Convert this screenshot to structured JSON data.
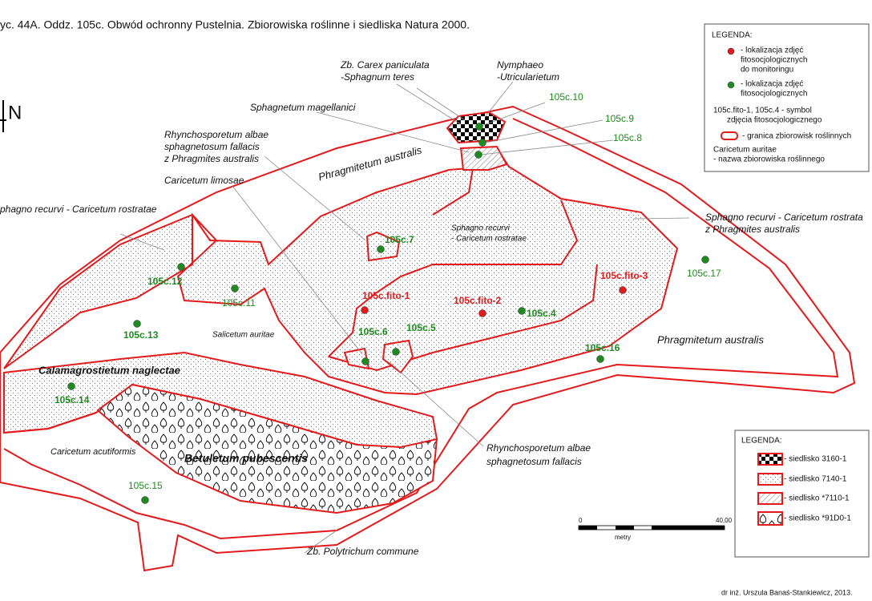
{
  "title": "yc. 44A. Oddz. 105c. Obwód ochronny Pustelnia. Zbiorowiska roślinne i siedliska Natura 2000.",
  "north": "N",
  "communities": [
    {
      "lines": [
        "Zb. Carex paniculata",
        "-Sphagnum teres"
      ]
    },
    {
      "lines": [
        "Nymphaeo",
        "-Utricularietum"
      ]
    },
    {
      "lines": [
        "Sphagnetum magellanici"
      ]
    },
    {
      "lines": [
        "Rhynchosporetum albae",
        "sphagnetosum fallacis",
        "z Phragmites australis"
      ]
    },
    {
      "lines": [
        "Caricetum limosae"
      ]
    },
    {
      "lines": [
        "Phragmitetum australis"
      ]
    },
    {
      "lines": [
        "phagno recurvi - Caricetum rostratae"
      ]
    },
    {
      "lines": [
        "Sphagno recurvi",
        "- Caricetum rostratae"
      ]
    },
    {
      "lines": [
        "Sphagno recurvi - Caricetum rostrata",
        "z Phragmites australis"
      ]
    },
    {
      "lines": [
        "Salicetum auritae"
      ]
    },
    {
      "lines": [
        "Calamagrostietum naglectae"
      ]
    },
    {
      "lines": [
        "Caricetum acutiformis"
      ]
    },
    {
      "lines": [
        "Betuletum pubescentis"
      ]
    },
    {
      "lines": [
        "Phragmitetum australis"
      ]
    },
    {
      "lines": [
        "Rhynchosporetum albae",
        "sphagnetosum fallacis"
      ]
    },
    {
      "lines": [
        "Zb. Polytrichum commune"
      ]
    }
  ],
  "points": [
    "105c.10",
    "105c.9",
    "105c.8",
    "105c.7",
    "105c.12",
    "105c.11",
    "105c.13",
    "105c.14",
    "105c.15",
    "105c.6",
    "105c.5",
    "105c.4",
    "105c.16",
    "105c.17"
  ],
  "monitoring_points": [
    "105c.fito-1",
    "105c.fito-2",
    "105c.fito-3"
  ],
  "legend": {
    "title": "LEGENDA:",
    "items": [
      {
        "lines": [
          "- lokalizacja zdjęć",
          "fitosocjologicznych",
          "do monitoringu"
        ]
      },
      {
        "lines": [
          "- lokalizacja zdjęć",
          "fitosocjologicznych"
        ]
      },
      {
        "lines": [
          "105c.fito-1, 105c.4 - symbol",
          "zdjęcia fitosocjologicznego"
        ]
      },
      {
        "lines": [
          "- granica zbiorowisk roślinnych"
        ]
      },
      {
        "lines": [
          "Caricetum auritae",
          "- nazwa zbiorowiska roślinnego"
        ]
      }
    ]
  },
  "habitat_legend": {
    "title": "LEGENDA:",
    "items": [
      "- siedlisko 3160-1",
      "- siedlisko 7140-1",
      "- siedlisko *7110-1",
      "- siedlisko *91D0-1"
    ]
  },
  "scale": {
    "start": "0",
    "end": "40,00",
    "unit": "metry"
  },
  "credit": "dr inż.  Urszula Banaś-Stankiewicz, 2013."
}
